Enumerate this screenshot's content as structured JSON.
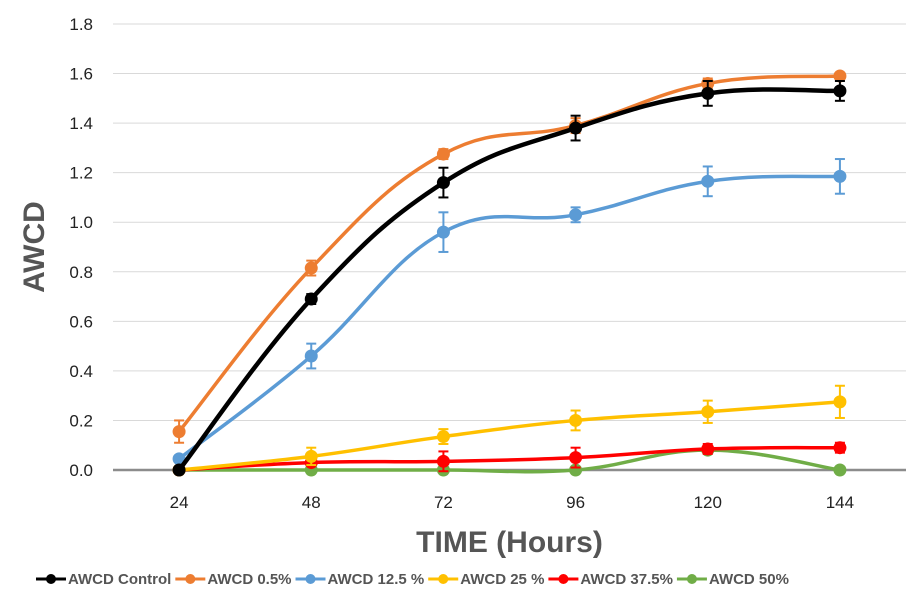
{
  "chart_data": {
    "type": "line",
    "title": "",
    "xlabel": "TIME (Hours)",
    "ylabel": "AWCD",
    "categories": [
      "24",
      "48",
      "72",
      "96",
      "120",
      "144"
    ],
    "ylim": [
      0,
      1.8
    ],
    "yticks": [
      "0.0",
      "0.2",
      "0.4",
      "0.6",
      "0.8",
      "1.0",
      "1.2",
      "1.4",
      "1.6",
      "1.8"
    ],
    "grid": true,
    "legend_position": "bottom",
    "series": [
      {
        "name": "AWCD Control",
        "color": "#000000",
        "values": [
          0.0,
          0.69,
          1.16,
          1.38,
          1.52,
          1.53
        ],
        "errors": [
          0.0,
          0.02,
          0.06,
          0.05,
          0.05,
          0.04
        ]
      },
      {
        "name": "AWCD 0.5%",
        "color": "#ED7D31",
        "values": [
          0.155,
          0.815,
          1.275,
          1.39,
          1.56,
          1.59
        ],
        "errors": [
          0.045,
          0.03,
          0.02,
          0.03,
          0.02,
          0.01
        ]
      },
      {
        "name": "AWCD 12.5 %",
        "color": "#5B9BD5",
        "values": [
          0.045,
          0.46,
          0.96,
          1.03,
          1.165,
          1.185
        ],
        "errors": [
          0.01,
          0.05,
          0.08,
          0.03,
          0.06,
          0.07
        ]
      },
      {
        "name": "AWCD 25 %",
        "color": "#FFC000",
        "values": [
          0.0,
          0.055,
          0.135,
          0.2,
          0.235,
          0.275
        ],
        "errors": [
          0.0,
          0.035,
          0.03,
          0.04,
          0.045,
          0.065
        ]
      },
      {
        "name": "AWCD 37.5%",
        "color": "#FF0000",
        "values": [
          0.0,
          0.03,
          0.035,
          0.05,
          0.085,
          0.09
        ],
        "errors": [
          0.0,
          0.0,
          0.04,
          0.04,
          0.02,
          0.02
        ]
      },
      {
        "name": "AWCD 50%",
        "color": "#70AD47",
        "values": [
          0.0,
          0.0,
          0.0,
          0.0,
          0.08,
          0.0
        ],
        "errors": [
          0.0,
          0.0,
          0.0,
          0.0,
          0.01,
          0.0
        ]
      }
    ]
  }
}
